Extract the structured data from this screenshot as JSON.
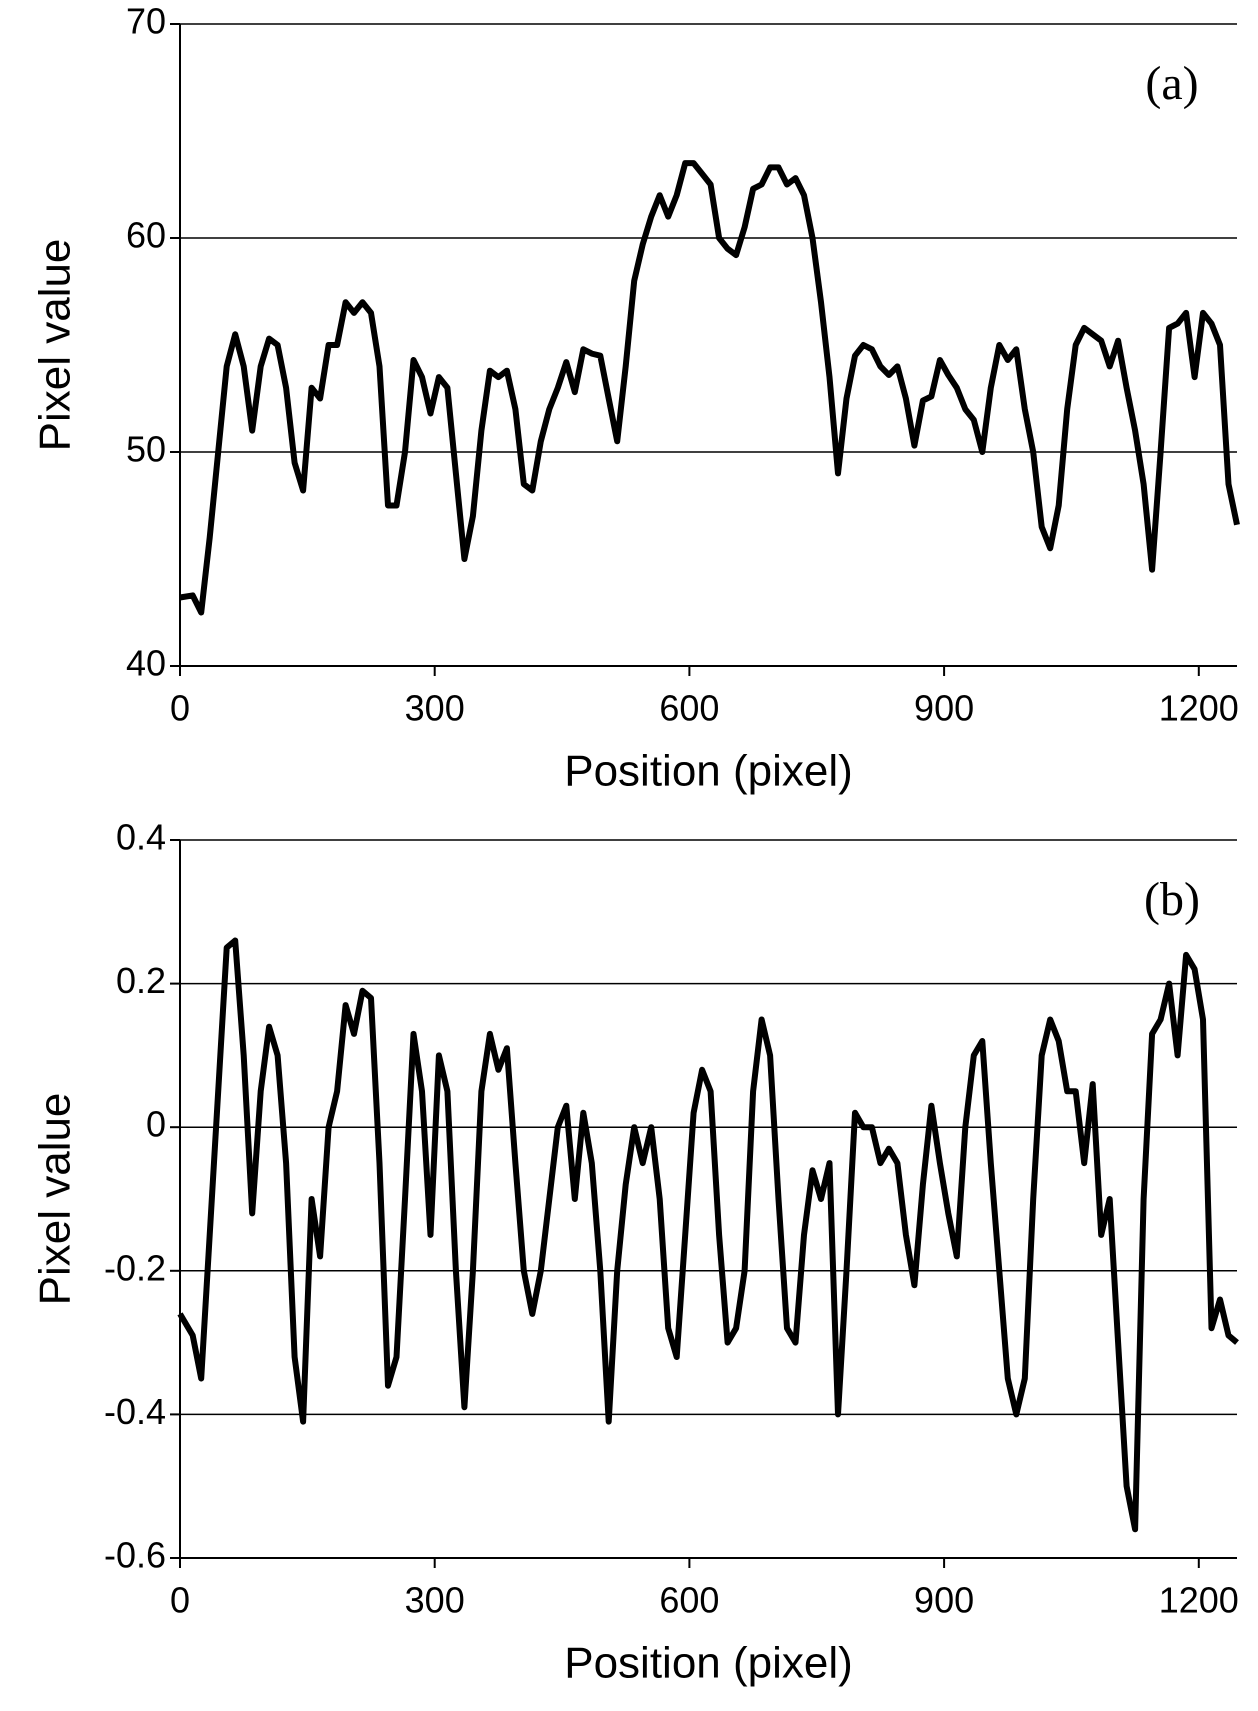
{
  "chart_data": [
    {
      "type": "line",
      "annotation": "(a)",
      "xlabel": "Position (pixel)",
      "ylabel": "Pixel value",
      "color": "#000000",
      "grid": true,
      "xlim": [
        0,
        1245
      ],
      "ylim": [
        40,
        70
      ],
      "xticks": [
        0,
        300,
        600,
        900,
        1200
      ],
      "yticks": [
        40,
        50,
        60,
        70
      ],
      "x": [
        0,
        15,
        25,
        35,
        45,
        55,
        65,
        75,
        85,
        95,
        105,
        115,
        125,
        135,
        145,
        155,
        165,
        175,
        185,
        195,
        205,
        215,
        225,
        235,
        245,
        255,
        265,
        275,
        285,
        295,
        305,
        315,
        325,
        335,
        345,
        355,
        365,
        375,
        385,
        395,
        405,
        415,
        425,
        435,
        445,
        455,
        465,
        475,
        485,
        495,
        505,
        515,
        525,
        535,
        545,
        555,
        565,
        575,
        585,
        595,
        605,
        615,
        625,
        635,
        645,
        655,
        665,
        675,
        685,
        695,
        705,
        715,
        725,
        735,
        745,
        755,
        765,
        775,
        785,
        795,
        805,
        815,
        825,
        835,
        845,
        855,
        865,
        875,
        885,
        895,
        905,
        915,
        925,
        935,
        945,
        955,
        965,
        975,
        985,
        995,
        1005,
        1015,
        1025,
        1035,
        1045,
        1055,
        1065,
        1075,
        1085,
        1095,
        1105,
        1115,
        1125,
        1135,
        1145,
        1155,
        1165,
        1175,
        1185,
        1195,
        1205,
        1215,
        1225,
        1235,
        1245
      ],
      "values": [
        43.2,
        43.3,
        42.5,
        46,
        50,
        54,
        55.5,
        54,
        51,
        54,
        55.3,
        55,
        53,
        49.5,
        48.2,
        53,
        52.5,
        55,
        55,
        57,
        56.5,
        57,
        56.5,
        54,
        47.5,
        47.5,
        50,
        54.3,
        53.5,
        51.8,
        53.5,
        53,
        49,
        45,
        47,
        51,
        53.8,
        53.5,
        53.8,
        52,
        48.5,
        48.2,
        50.5,
        52,
        53,
        54.2,
        52.8,
        54.8,
        54.6,
        54.5,
        52.5,
        50.5,
        54,
        58,
        59.7,
        61,
        62,
        61,
        62,
        63.5,
        63.5,
        63,
        62.5,
        60,
        59.5,
        59.2,
        60.5,
        62.3,
        62.5,
        63.3,
        63.3,
        62.5,
        62.8,
        62,
        60,
        57,
        53.5,
        49,
        52.5,
        54.5,
        55,
        54.8,
        54,
        53.6,
        54,
        52.5,
        50.3,
        52.4,
        52.6,
        54.3,
        53.6,
        53,
        52,
        51.5,
        50,
        53,
        55,
        54.3,
        54.8,
        52,
        50,
        46.5,
        45.5,
        47.5,
        52,
        55,
        55.8,
        55.5,
        55.2,
        54,
        55.2,
        53,
        51,
        48.5,
        44.5,
        50,
        55.8,
        56,
        56.5,
        53.5,
        56.5,
        56,
        55,
        48.5,
        46.6
      ]
    },
    {
      "type": "line",
      "annotation": "(b)",
      "xlabel": "Position (pixel)",
      "ylabel": "Pixel value",
      "color": "#000000",
      "grid": true,
      "xlim": [
        0,
        1245
      ],
      "ylim": [
        -0.6,
        0.4
      ],
      "xticks": [
        0,
        300,
        600,
        900,
        1200
      ],
      "yticks": [
        -0.6,
        -0.4,
        -0.2,
        0,
        0.2,
        0.4
      ],
      "x": [
        0,
        15,
        25,
        35,
        45,
        55,
        65,
        75,
        85,
        95,
        105,
        115,
        125,
        135,
        145,
        155,
        165,
        175,
        185,
        195,
        205,
        215,
        225,
        235,
        245,
        255,
        265,
        275,
        285,
        295,
        305,
        315,
        325,
        335,
        345,
        355,
        365,
        375,
        385,
        395,
        405,
        415,
        425,
        435,
        445,
        455,
        465,
        475,
        485,
        495,
        505,
        515,
        525,
        535,
        545,
        555,
        565,
        575,
        585,
        595,
        605,
        615,
        625,
        635,
        645,
        655,
        665,
        675,
        685,
        695,
        705,
        715,
        725,
        735,
        745,
        755,
        765,
        775,
        785,
        795,
        805,
        815,
        825,
        835,
        845,
        855,
        865,
        875,
        885,
        895,
        905,
        915,
        925,
        935,
        945,
        955,
        965,
        975,
        985,
        995,
        1005,
        1015,
        1025,
        1035,
        1045,
        1055,
        1065,
        1075,
        1085,
        1095,
        1105,
        1115,
        1125,
        1135,
        1145,
        1155,
        1165,
        1175,
        1185,
        1195,
        1205,
        1215,
        1225,
        1235,
        1245
      ],
      "values": [
        -0.26,
        -0.29,
        -0.35,
        -0.15,
        0.05,
        0.25,
        0.26,
        0.1,
        -0.12,
        0.05,
        0.14,
        0.1,
        -0.05,
        -0.32,
        -0.41,
        -0.1,
        -0.18,
        0,
        0.05,
        0.17,
        0.13,
        0.19,
        0.18,
        -0.05,
        -0.36,
        -0.32,
        -0.1,
        0.13,
        0.05,
        -0.15,
        0.1,
        0.05,
        -0.2,
        -0.39,
        -0.2,
        0.05,
        0.13,
        0.08,
        0.11,
        -0.05,
        -0.2,
        -0.26,
        -0.2,
        -0.1,
        0,
        0.03,
        -0.1,
        0.02,
        -0.05,
        -0.2,
        -0.41,
        -0.2,
        -0.08,
        0,
        -0.05,
        0,
        -0.1,
        -0.28,
        -0.32,
        -0.15,
        0.02,
        0.08,
        0.05,
        -0.15,
        -0.3,
        -0.28,
        -0.2,
        0.05,
        0.15,
        0.1,
        -0.1,
        -0.28,
        -0.3,
        -0.15,
        -0.06,
        -0.1,
        -0.05,
        -0.4,
        -0.2,
        0.02,
        0,
        0,
        -0.05,
        -0.03,
        -0.05,
        -0.15,
        -0.22,
        -0.08,
        0.03,
        -0.05,
        -0.12,
        -0.18,
        0,
        0.1,
        0.12,
        -0.05,
        -0.2,
        -0.35,
        -0.4,
        -0.35,
        -0.1,
        0.1,
        0.15,
        0.12,
        0.05,
        0.05,
        -0.05,
        0.06,
        -0.15,
        -0.1,
        -0.3,
        -0.5,
        -0.56,
        -0.1,
        0.13,
        0.15,
        0.2,
        0.1,
        0.24,
        0.22,
        0.15,
        -0.28,
        -0.24,
        -0.29,
        -0.3
      ]
    }
  ]
}
